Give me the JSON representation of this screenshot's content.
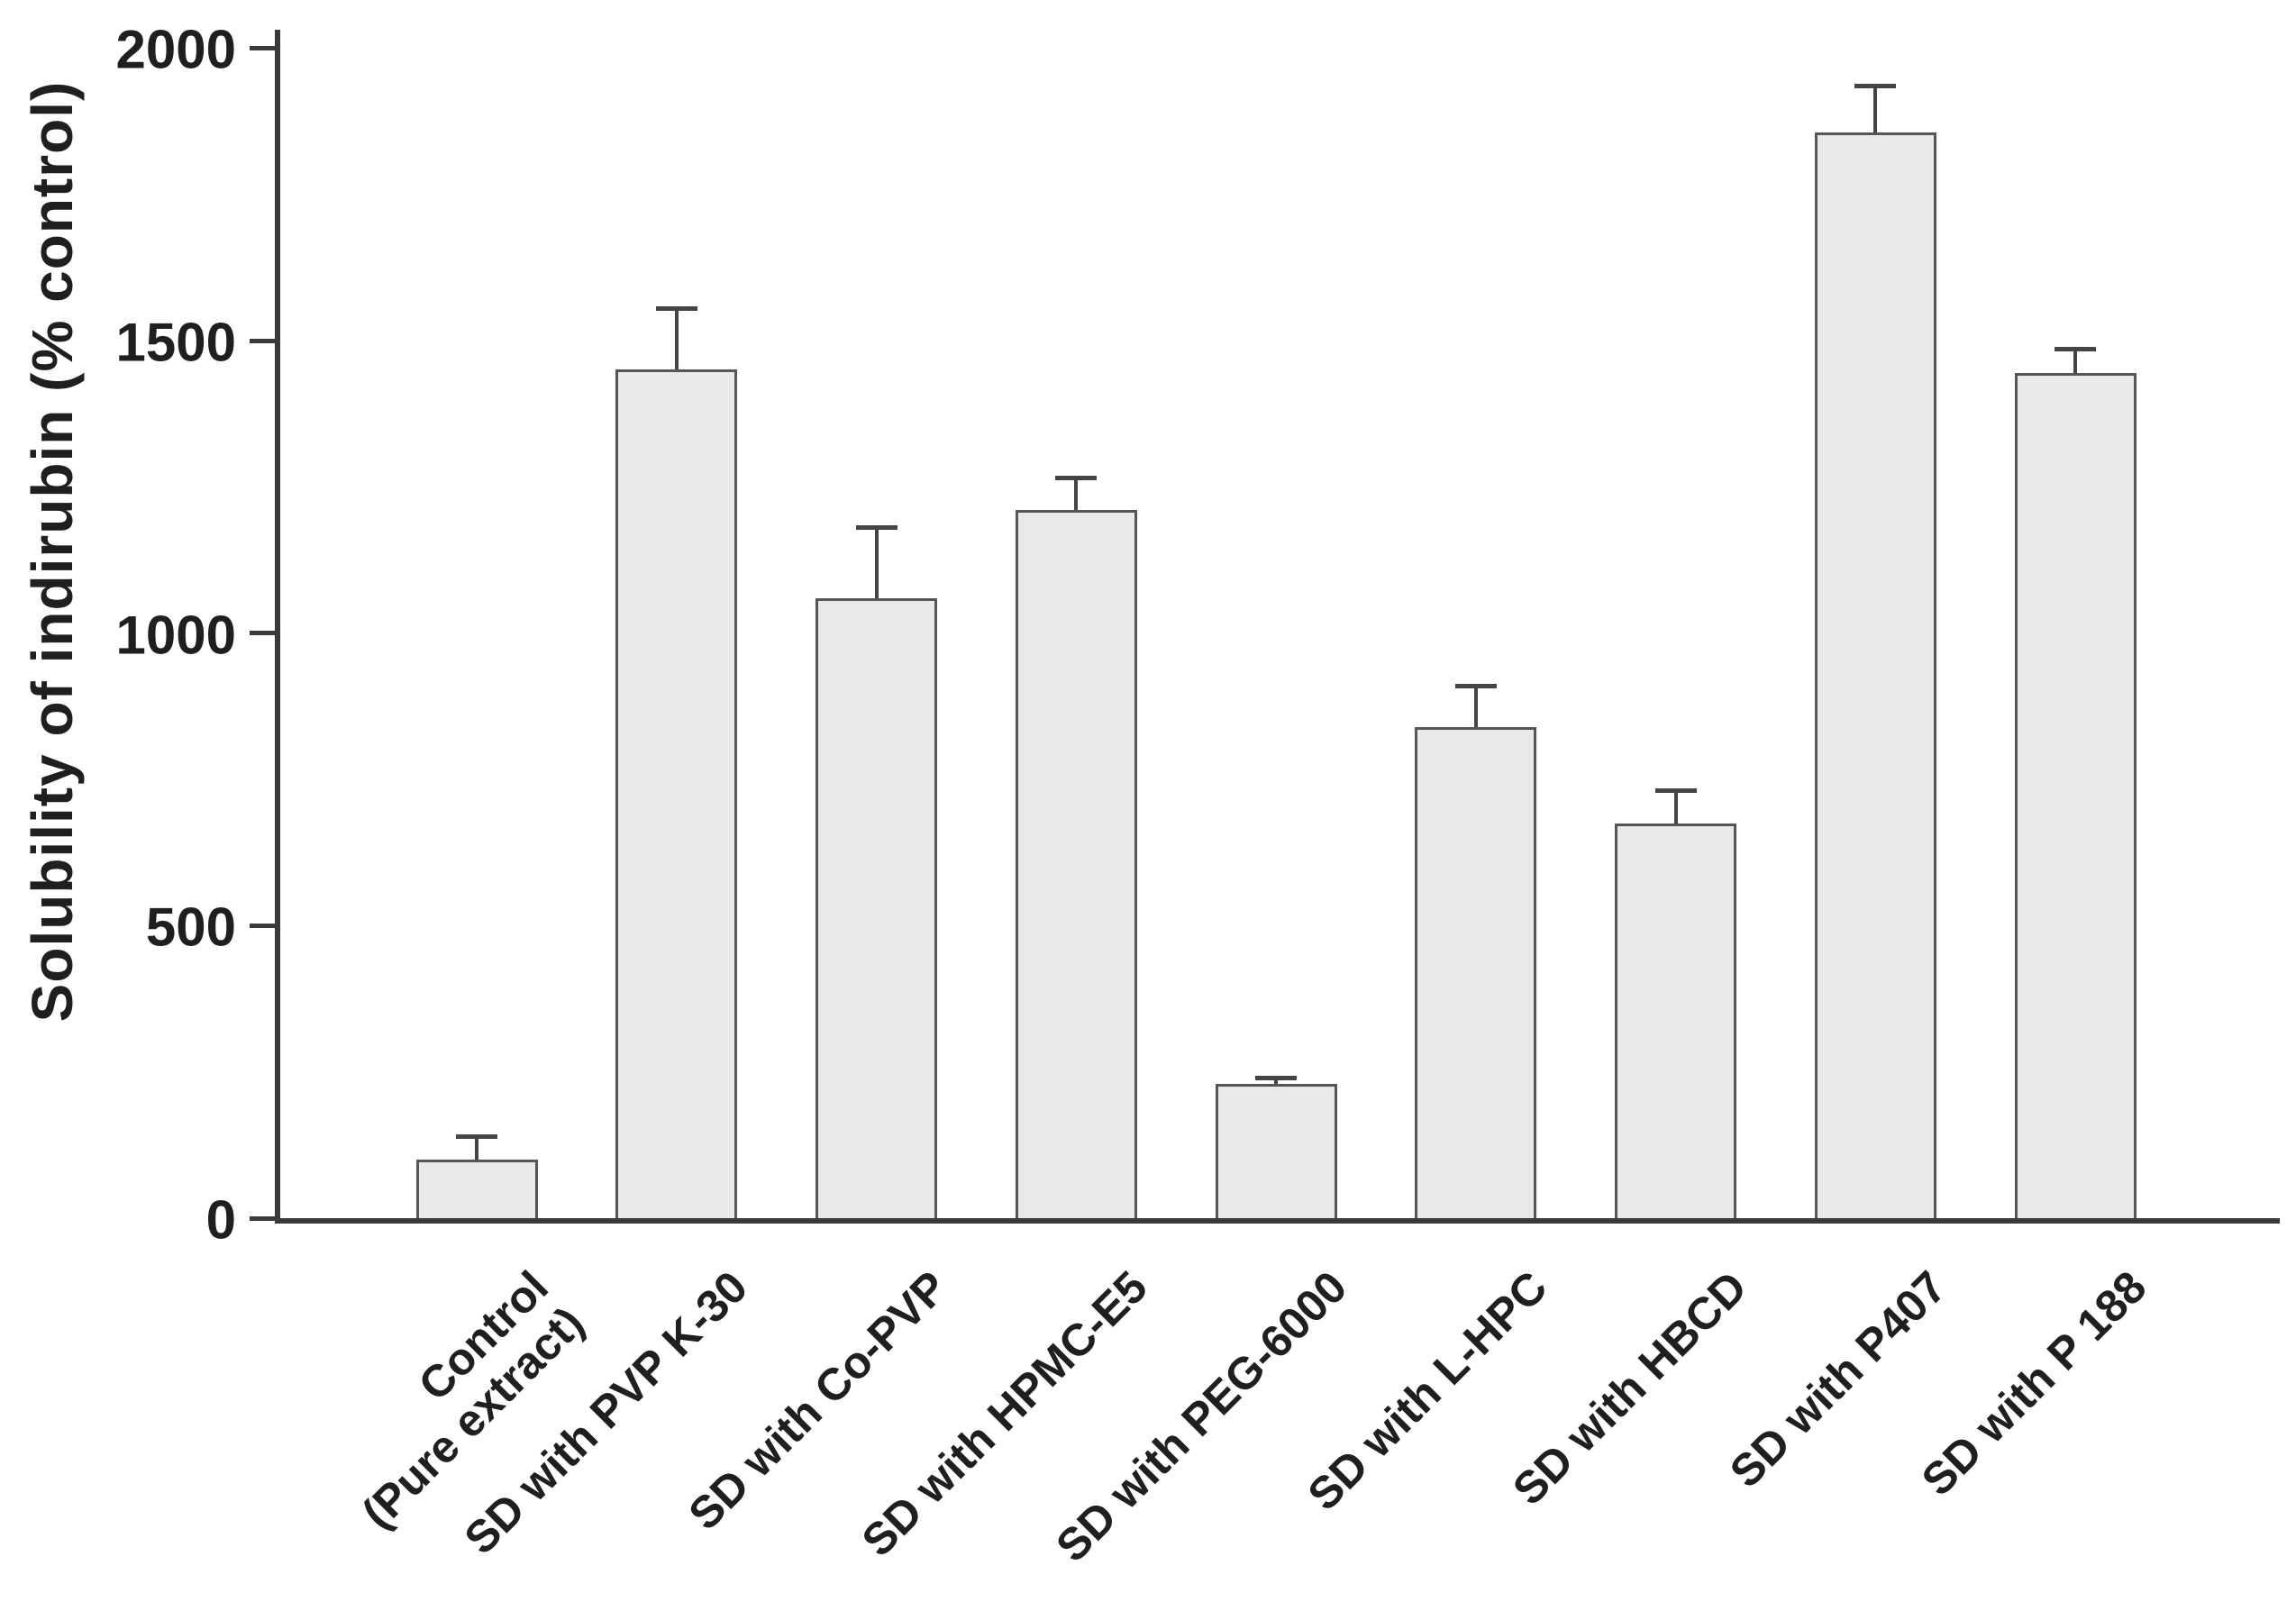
{
  "chart_data": {
    "type": "bar",
    "title": "",
    "ylabel": "Solubility of indirubin (% control)",
    "xlabel": "",
    "ylim": [
      0,
      2000
    ],
    "yticks": [
      0,
      500,
      1000,
      1500,
      2000
    ],
    "grid": false,
    "legend_position": "none",
    "categories": [
      "Control\n(Pure extract)",
      "SD with PVP K-30",
      "SD with Co-PVP",
      "SD with HPMC-E5",
      "SD with PEG-6000",
      "SD with L-HPC",
      "SD with HBCD",
      "SD with P407",
      "SD with P 188"
    ],
    "values": [
      100,
      1450,
      1060,
      1210,
      230,
      840,
      675,
      1855,
      1445
    ],
    "errors_up": [
      40,
      105,
      120,
      55,
      10,
      70,
      55,
      80,
      40
    ],
    "bar_fill": "#e9e9e9",
    "bar_border": "#565656",
    "axis_color": "#3a3a3a",
    "error_color": "#444444",
    "text_color": "#1f1f1f"
  }
}
